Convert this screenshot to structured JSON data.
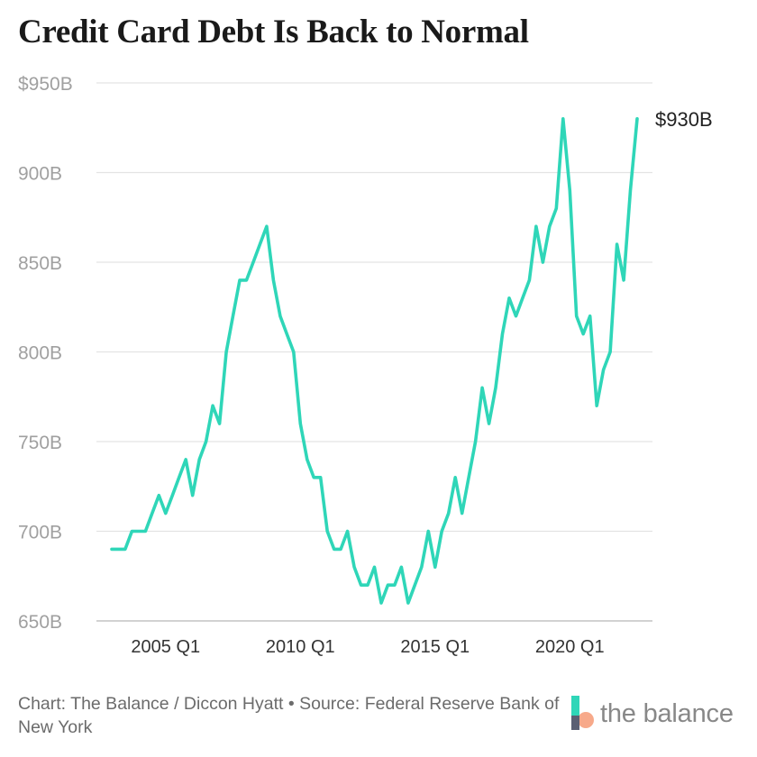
{
  "chart_data": {
    "type": "line",
    "title": "Credit Card Debt Is Back to Normal",
    "xlabel": "",
    "ylabel": "",
    "x_tick_labels": [
      "2005 Q1",
      "2010 Q1",
      "2015 Q1",
      "2020 Q1"
    ],
    "y_tick_labels": [
      "$950B",
      "900B",
      "850B",
      "800B",
      "750B",
      "700B",
      "650B"
    ],
    "y_ticks": [
      950,
      900,
      850,
      800,
      750,
      700,
      650
    ],
    "ylim": [
      650,
      950
    ],
    "xlim": [
      "2003 Q1",
      "2022 Q3"
    ],
    "grid": "horizontal",
    "line_color": "#2fd6b8",
    "series": [
      {
        "x": [
          "2003 Q1",
          "2003 Q2",
          "2003 Q3",
          "2003 Q4",
          "2004 Q1",
          "2004 Q2",
          "2004 Q3",
          "2004 Q4",
          "2005 Q1",
          "2005 Q2",
          "2005 Q3",
          "2005 Q4",
          "2006 Q1",
          "2006 Q2",
          "2006 Q3",
          "2006 Q4",
          "2007 Q1",
          "2007 Q2",
          "2007 Q3",
          "2007 Q4",
          "2008 Q1",
          "2008 Q2",
          "2008 Q3",
          "2008 Q4",
          "2009 Q1",
          "2009 Q2",
          "2009 Q3",
          "2009 Q4",
          "2010 Q1",
          "2010 Q2",
          "2010 Q3",
          "2010 Q4",
          "2011 Q1",
          "2011 Q2",
          "2011 Q3",
          "2011 Q4",
          "2012 Q1",
          "2012 Q2",
          "2012 Q3",
          "2012 Q4",
          "2013 Q1",
          "2013 Q2",
          "2013 Q3",
          "2013 Q4",
          "2014 Q1",
          "2014 Q2",
          "2014 Q3",
          "2014 Q4",
          "2015 Q1",
          "2015 Q2",
          "2015 Q3",
          "2015 Q4",
          "2016 Q1",
          "2016 Q2",
          "2016 Q3",
          "2016 Q4",
          "2017 Q1",
          "2017 Q2",
          "2017 Q3",
          "2017 Q4",
          "2018 Q1",
          "2018 Q2",
          "2018 Q3",
          "2018 Q4",
          "2019 Q1",
          "2019 Q2",
          "2019 Q3",
          "2019 Q4",
          "2020 Q1",
          "2020 Q2",
          "2020 Q3",
          "2020 Q4",
          "2021 Q1",
          "2021 Q2",
          "2021 Q3",
          "2021 Q4",
          "2022 Q1",
          "2022 Q2",
          "2022 Q3"
        ],
        "values": [
          690,
          690,
          690,
          700,
          700,
          700,
          710,
          720,
          710,
          720,
          730,
          740,
          720,
          740,
          750,
          770,
          760,
          800,
          820,
          840,
          840,
          850,
          860,
          870,
          840,
          820,
          810,
          800,
          760,
          740,
          730,
          730,
          700,
          690,
          690,
          700,
          680,
          670,
          670,
          680,
          660,
          670,
          670,
          680,
          660,
          670,
          680,
          700,
          680,
          700,
          710,
          730,
          710,
          730,
          750,
          780,
          760,
          780,
          810,
          830,
          820,
          830,
          840,
          870,
          850,
          870,
          880,
          930,
          890,
          820,
          810,
          820,
          770,
          790,
          800,
          860,
          840,
          890,
          930
        ]
      }
    ],
    "annotations": [
      {
        "text": "$930B",
        "x": "2022 Q3",
        "y": 930
      }
    ]
  },
  "footer": {
    "credit": "Chart: The Balance / Diccon Hyatt • Source: Federal Reserve Bank of New York"
  },
  "logo": {
    "text": "the balance",
    "colors": [
      "#2fd6b8",
      "#f7a98a",
      "#5a5f73"
    ]
  }
}
